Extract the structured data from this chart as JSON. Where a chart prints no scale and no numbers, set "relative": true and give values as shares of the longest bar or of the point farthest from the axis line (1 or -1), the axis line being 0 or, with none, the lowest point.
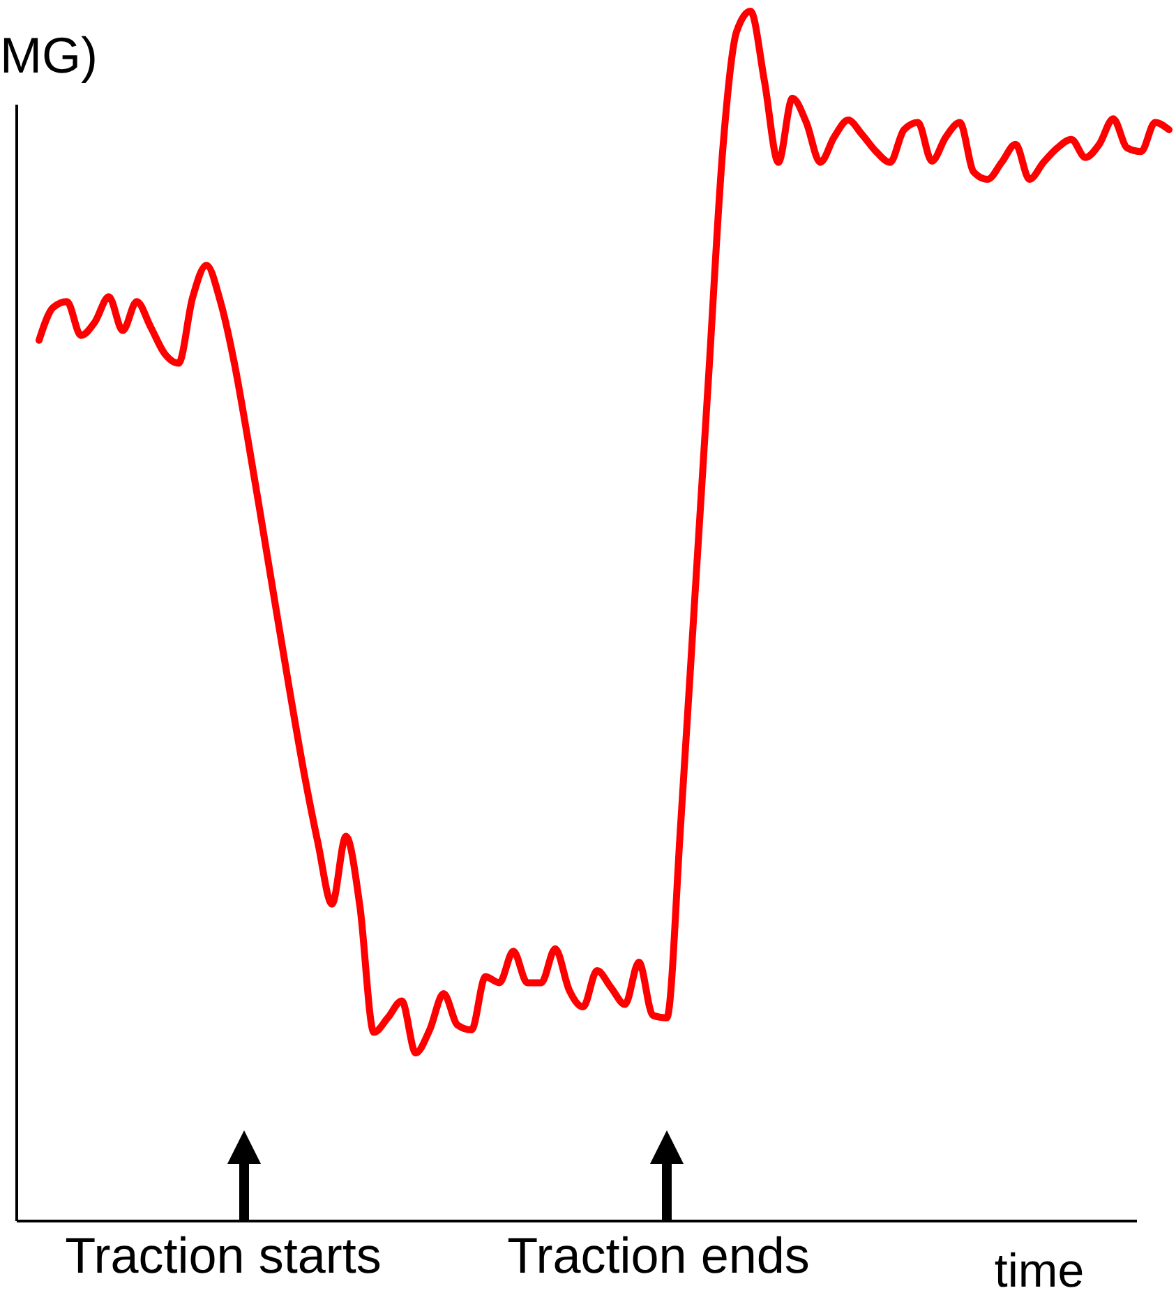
{
  "chart_data": {
    "type": "line",
    "relative": true,
    "ylabel": "MG)",
    "xlabel": "time",
    "line_style": "solid",
    "marker": "none",
    "annotations": [
      "Traction starts",
      "Traction ends"
    ],
    "categories": [
      null,
      null,
      null,
      null,
      null,
      null,
      null,
      null,
      null,
      null,
      null,
      null,
      null,
      null,
      null,
      null,
      null,
      null,
      null,
      null,
      null,
      null,
      null,
      null,
      null,
      null,
      null,
      null,
      null,
      null,
      null,
      null,
      null,
      null,
      null,
      null,
      null,
      null,
      null,
      null,
      null,
      null,
      null,
      null,
      null,
      null,
      null,
      null,
      null,
      null,
      null,
      null,
      null,
      null,
      null,
      null,
      null,
      null,
      null,
      null,
      null,
      null,
      null,
      null,
      null,
      null,
      null,
      null,
      null,
      null,
      null,
      null,
      null,
      null,
      null,
      null,
      null,
      null,
      null,
      null,
      null,
      null
    ],
    "series": [
      {
        "color": "#ff0000",
        "values": [
          0.728,
          0.755,
          0.76,
          0.732,
          0.743,
          0.764,
          0.736,
          0.76,
          0.739,
          0.717,
          0.709,
          0.763,
          0.79,
          0.76,
          0.709,
          0.644,
          0.575,
          0.505,
          0.436,
          0.37,
          0.312,
          0.262,
          0.318,
          0.26,
          0.156,
          0.168,
          0.182,
          0.139,
          0.158,
          0.188,
          0.162,
          0.158,
          0.202,
          0.197,
          0.223,
          0.197,
          0.197,
          0.225,
          0.191,
          0.177,
          0.207,
          0.193,
          0.179,
          0.214,
          0.17,
          0.168,
          0.329,
          0.514,
          0.699,
          0.884,
          0.983,
          1,
          0.942,
          0.875,
          0.928,
          0.908,
          0.875,
          0.896,
          0.91,
          0.898,
          0.884,
          0.875,
          0.902,
          0.908,
          0.876,
          0.896,
          0.908,
          0.867,
          0.861,
          0.875,
          0.89,
          0.861,
          0.875,
          0.887,
          0.894,
          0.879,
          0.89,
          0.911,
          0.887,
          0.884,
          0.908,
          0.902
        ]
      }
    ]
  }
}
